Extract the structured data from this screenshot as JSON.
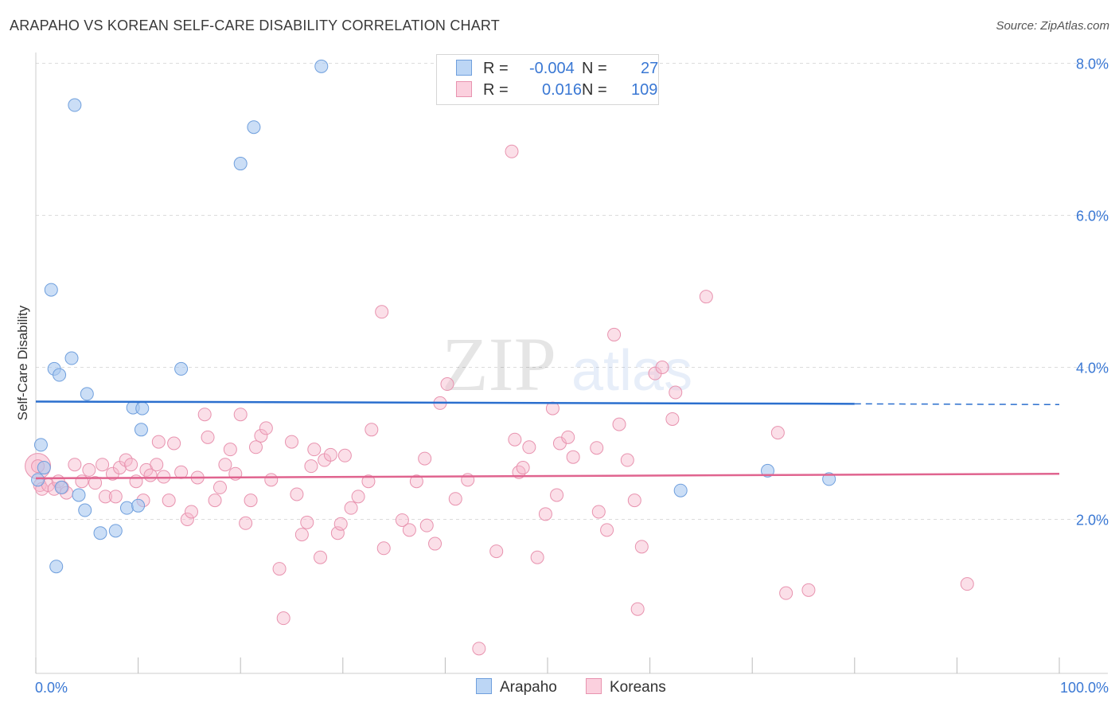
{
  "header": {
    "title": "ARAPAHO VS KOREAN SELF-CARE DISABILITY CORRELATION CHART",
    "source": "Source: ZipAtlas.com"
  },
  "watermark": {
    "zip": "ZIP",
    "atlas": "atlas"
  },
  "stats_legend": {
    "rows": [
      {
        "r_label": "R =",
        "r_value": "-0.004",
        "n_label": "N =",
        "n_value": "27",
        "color": "#a9c8f0"
      },
      {
        "r_label": "R =",
        "r_value": "0.016",
        "n_label": "N =",
        "n_value": "109",
        "color": "#f7b8cc"
      }
    ]
  },
  "bottom_legend": {
    "arapaho": {
      "label": "Arapaho",
      "color": "#a9c8f0"
    },
    "koreans": {
      "label": "Koreans",
      "color": "#f7b8cc"
    }
  },
  "chart_data": {
    "type": "scatter",
    "title": "ARAPAHO VS KOREAN SELF-CARE DISABILITY CORRELATION CHART",
    "ylabel": "Self-Care Disability",
    "xlabel": "",
    "x_tick_labels": [
      "0.0%",
      "100.0%"
    ],
    "y_tick_labels": [
      "2.0%",
      "4.0%",
      "6.0%",
      "8.0%"
    ],
    "y_ticks": [
      2.0,
      4.0,
      6.0,
      8.0
    ],
    "xlim": [
      0,
      100
    ],
    "ylim": [
      0,
      8.3
    ],
    "grid": true,
    "colors": {
      "arapaho_fill": "#a9c8f0",
      "arapaho_stroke": "#6f9fdd",
      "arapaho_line": "#2b6fce",
      "koreans_fill": "#f7b8cc",
      "koreans_stroke": "#e893af",
      "koreans_line": "#e0648f",
      "tick_label": "#3a78d4"
    },
    "series": [
      {
        "name": "Arapaho",
        "trend": {
          "x0": 0,
          "y0": 3.55,
          "x1": 80,
          "y1": 3.52,
          "dash_to_x": 100,
          "dash_y1": 3.51
        },
        "points": [
          [
            0.2,
            2.52
          ],
          [
            0.5,
            2.98
          ],
          [
            0.8,
            2.68
          ],
          [
            1.5,
            5.02
          ],
          [
            1.8,
            3.98
          ],
          [
            2.0,
            1.38
          ],
          [
            2.3,
            3.9
          ],
          [
            2.5,
            2.42
          ],
          [
            3.5,
            4.12
          ],
          [
            3.8,
            7.45
          ],
          [
            4.2,
            2.32
          ],
          [
            4.8,
            2.12
          ],
          [
            5.0,
            3.65
          ],
          [
            6.3,
            1.82
          ],
          [
            7.8,
            1.85
          ],
          [
            8.9,
            2.15
          ],
          [
            9.5,
            3.47
          ],
          [
            10.0,
            2.18
          ],
          [
            10.3,
            3.18
          ],
          [
            10.4,
            3.46
          ],
          [
            14.2,
            3.98
          ],
          [
            20.0,
            6.68
          ],
          [
            21.3,
            7.16
          ],
          [
            27.9,
            7.96
          ],
          [
            63.0,
            2.38
          ],
          [
            71.5,
            2.64
          ],
          [
            77.5,
            2.53
          ]
        ]
      },
      {
        "name": "Koreans",
        "trend": {
          "x0": 0,
          "y0": 2.54,
          "x1": 100,
          "y1": 2.6
        },
        "points": [
          [
            0.2,
            2.7
          ],
          [
            0.4,
            2.45
          ],
          [
            0.6,
            2.4
          ],
          [
            1.2,
            2.45
          ],
          [
            1.8,
            2.4
          ],
          [
            2.2,
            2.5
          ],
          [
            2.6,
            2.42
          ],
          [
            3.0,
            2.35
          ],
          [
            3.8,
            2.72
          ],
          [
            4.5,
            2.5
          ],
          [
            5.2,
            2.65
          ],
          [
            5.8,
            2.48
          ],
          [
            6.5,
            2.72
          ],
          [
            6.8,
            2.3
          ],
          [
            7.5,
            2.6
          ],
          [
            7.8,
            2.3
          ],
          [
            8.2,
            2.68
          ],
          [
            8.8,
            2.78
          ],
          [
            9.3,
            2.72
          ],
          [
            9.8,
            2.5
          ],
          [
            10.5,
            2.25
          ],
          [
            10.8,
            2.65
          ],
          [
            11.2,
            2.58
          ],
          [
            11.8,
            2.72
          ],
          [
            12.0,
            3.02
          ],
          [
            12.5,
            2.56
          ],
          [
            13.0,
            2.25
          ],
          [
            13.5,
            3.0
          ],
          [
            14.2,
            2.62
          ],
          [
            14.8,
            2.0
          ],
          [
            15.2,
            2.1
          ],
          [
            15.8,
            2.55
          ],
          [
            16.5,
            3.38
          ],
          [
            16.8,
            3.08
          ],
          [
            17.5,
            2.25
          ],
          [
            18.0,
            2.42
          ],
          [
            18.5,
            2.72
          ],
          [
            19.0,
            2.92
          ],
          [
            19.5,
            2.6
          ],
          [
            20.0,
            3.38
          ],
          [
            20.5,
            1.95
          ],
          [
            21.0,
            2.25
          ],
          [
            21.5,
            2.95
          ],
          [
            22.0,
            3.1
          ],
          [
            22.5,
            3.2
          ],
          [
            23.0,
            2.52
          ],
          [
            23.8,
            1.35
          ],
          [
            24.2,
            0.7
          ],
          [
            25.0,
            3.02
          ],
          [
            25.5,
            2.33
          ],
          [
            26.0,
            1.8
          ],
          [
            26.5,
            1.96
          ],
          [
            26.9,
            2.7
          ],
          [
            27.2,
            2.92
          ],
          [
            27.8,
            1.5
          ],
          [
            28.2,
            2.78
          ],
          [
            28.8,
            2.85
          ],
          [
            29.5,
            1.82
          ],
          [
            29.8,
            1.94
          ],
          [
            30.2,
            2.84
          ],
          [
            30.8,
            2.15
          ],
          [
            31.5,
            2.3
          ],
          [
            32.5,
            2.5
          ],
          [
            32.8,
            3.18
          ],
          [
            33.8,
            4.73
          ],
          [
            34.0,
            1.62
          ],
          [
            35.8,
            1.99
          ],
          [
            36.5,
            1.86
          ],
          [
            37.2,
            2.5
          ],
          [
            38.0,
            2.8
          ],
          [
            38.2,
            1.92
          ],
          [
            39.0,
            1.68
          ],
          [
            39.5,
            3.53
          ],
          [
            40.2,
            3.78
          ],
          [
            41.0,
            2.27
          ],
          [
            42.2,
            2.52
          ],
          [
            43.3,
            0.3
          ],
          [
            45.0,
            1.58
          ],
          [
            46.5,
            6.84
          ],
          [
            46.8,
            3.05
          ],
          [
            47.2,
            2.62
          ],
          [
            47.6,
            2.68
          ],
          [
            48.2,
            2.95
          ],
          [
            49.0,
            1.5
          ],
          [
            49.8,
            2.07
          ],
          [
            50.5,
            3.46
          ],
          [
            50.9,
            2.32
          ],
          [
            51.2,
            3.0
          ],
          [
            52.0,
            3.08
          ],
          [
            52.5,
            2.82
          ],
          [
            54.8,
            2.94
          ],
          [
            55.0,
            2.1
          ],
          [
            55.8,
            1.86
          ],
          [
            56.5,
            4.43
          ],
          [
            57.0,
            3.25
          ],
          [
            57.8,
            2.78
          ],
          [
            58.8,
            0.82
          ],
          [
            58.5,
            2.25
          ],
          [
            59.2,
            1.64
          ],
          [
            60.5,
            3.92
          ],
          [
            61.2,
            4.0
          ],
          [
            62.2,
            3.32
          ],
          [
            62.5,
            3.67
          ],
          [
            65.5,
            4.93
          ],
          [
            72.5,
            3.14
          ],
          [
            73.3,
            1.03
          ],
          [
            75.5,
            1.07
          ],
          [
            91.0,
            1.15
          ]
        ]
      }
    ]
  }
}
